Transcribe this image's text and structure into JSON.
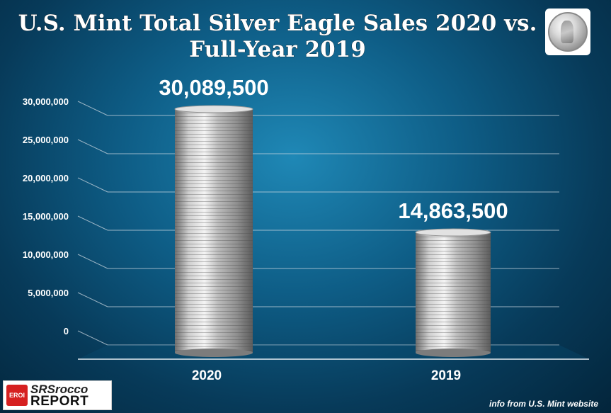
{
  "chart_data": {
    "type": "bar",
    "title_lines": [
      "U.S. Mint Total Silver Eagle Sales 2020 vs.",
      "Full-Year 2019"
    ],
    "categories": [
      "2020",
      "2019"
    ],
    "values": [
      30089500,
      14863500
    ],
    "data_labels": [
      "30,089,500",
      "14,863,500"
    ],
    "ylim": [
      0,
      30000000
    ],
    "y_ticks": [
      0,
      5000000,
      10000000,
      15000000,
      20000000,
      25000000,
      30000000
    ],
    "y_tick_labels": [
      "0",
      "5,000,000",
      "10,000,000",
      "15,000,000",
      "20,000,000",
      "25,000,000",
      "30,000,000"
    ],
    "grid": true,
    "source_note": "info from U.S. Mint website"
  },
  "logo": {
    "badge": "EROI",
    "line1": "SRSrocco",
    "line2": "REPORT"
  },
  "icons": {
    "coin": "silver-eagle-coin-icon"
  }
}
